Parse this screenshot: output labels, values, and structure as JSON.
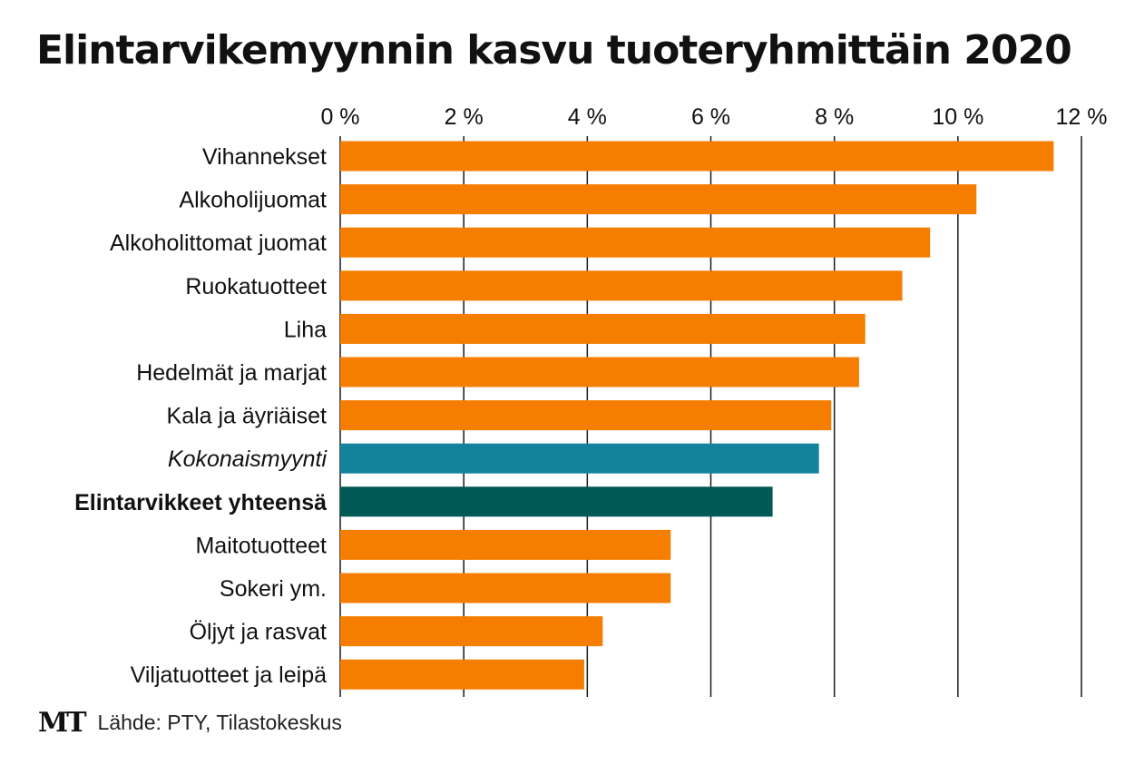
{
  "chart_data": {
    "type": "bar",
    "orientation": "horizontal",
    "title": "Elintarvikemyynnin kasvu tuoteryhmittäin 2020",
    "xlim": [
      0,
      12
    ],
    "ticks": [
      "0 %",
      "2 %",
      "4 %",
      "6 %",
      "8 %",
      "10 %",
      "12 %"
    ],
    "tick_values": [
      0,
      2,
      4,
      6,
      8,
      10,
      12
    ],
    "grid": true,
    "categories": [
      "Vihannekset",
      "Alkoholijuomat",
      "Alkoholittomat juomat",
      "Ruokatuotteet",
      "Liha",
      "Hedelmät ja marjat",
      "Kala ja äyriäiset",
      "Kokonaismyynti",
      "Elintarvikkeet yhteensä",
      "Maitotuotteet",
      "Sokeri ym.",
      "Öljyt ja rasvat",
      "Viljatuotteet ja leipä"
    ],
    "values": [
      11.55,
      10.3,
      9.55,
      9.1,
      8.5,
      8.4,
      7.95,
      7.75,
      7.0,
      5.35,
      5.35,
      4.25,
      3.95
    ],
    "styles": [
      "normal",
      "normal",
      "normal",
      "normal",
      "normal",
      "normal",
      "normal",
      "italic",
      "bold",
      "normal",
      "normal",
      "normal",
      "normal"
    ],
    "colors": [
      "#f57d00",
      "#f57d00",
      "#f57d00",
      "#f57d00",
      "#f57d00",
      "#f57d00",
      "#f57d00",
      "#13839c",
      "#005954",
      "#f57d00",
      "#f57d00",
      "#f57d00",
      "#f57d00"
    ]
  },
  "footer": {
    "logo": "MT",
    "source": "Lähde: PTY, Tilastokeskus"
  }
}
